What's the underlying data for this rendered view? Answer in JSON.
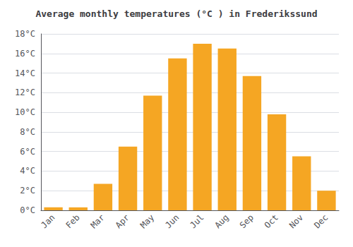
{
  "chart_data": {
    "type": "bar",
    "title": "Average monthly temperatures (°C ) in Frederikssund",
    "categories": [
      "Jan",
      "Feb",
      "Mar",
      "Apr",
      "May",
      "Jun",
      "Jul",
      "Aug",
      "Sep",
      "Oct",
      "Nov",
      "Dec"
    ],
    "values": [
      0.3,
      0.3,
      2.7,
      6.5,
      11.7,
      15.5,
      17.0,
      16.5,
      13.7,
      9.8,
      5.5,
      2.0
    ],
    "color": "#F5A623",
    "ylim": [
      0,
      18
    ],
    "yticks": [
      {
        "value": 0,
        "label": "0°C"
      },
      {
        "value": 2,
        "label": "2°C"
      },
      {
        "value": 4,
        "label": "4°C"
      },
      {
        "value": 6,
        "label": "6°C"
      },
      {
        "value": 8,
        "label": "8°C"
      },
      {
        "value": 10,
        "label": "10°C"
      },
      {
        "value": 12,
        "label": "12°C"
      },
      {
        "value": 14,
        "label": "14°C"
      },
      {
        "value": 16,
        "label": "16°C"
      },
      {
        "value": 18,
        "label": "18°C"
      }
    ],
    "grid": true
  }
}
